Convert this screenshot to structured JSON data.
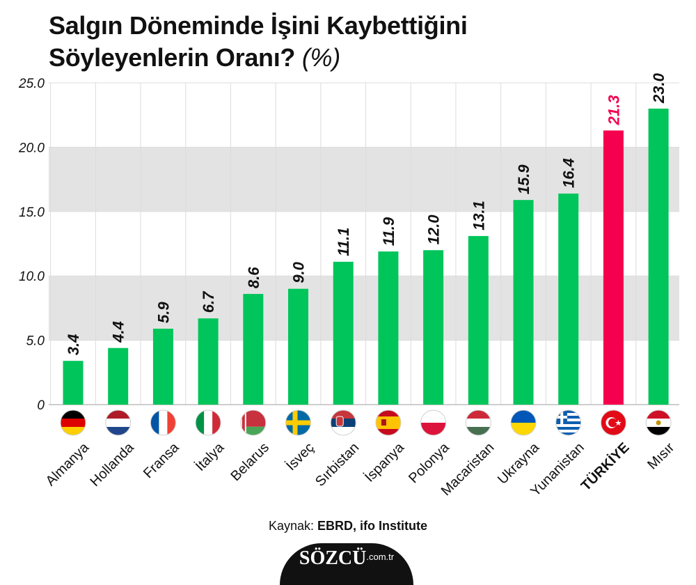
{
  "title": {
    "line1": "Salgın Döneminde İşini Kaybettiğini",
    "line2": "Söyleyenlerin Oranı?",
    "unit": "(%)"
  },
  "source": {
    "prefix": "Kaynak:",
    "name": "EBRD, ifo Institute"
  },
  "logo": {
    "brand": "SÖZCÜ",
    "tld": ".com.tr"
  },
  "colors": {
    "bar": "#00c55a",
    "highlight": "#f5004e",
    "band": "#e3e3e3",
    "grid": "#dcdcdc"
  },
  "chart_data": {
    "type": "bar",
    "categories": [
      "Almanya",
      "Hollanda",
      "Fransa",
      "İtalya",
      "Belarus",
      "İsveç",
      "Sırbistan",
      "İspanya",
      "Polonya",
      "Macaristan",
      "Ukrayna",
      "Yunanistan",
      "TÜRKİYE",
      "Mısır"
    ],
    "values": [
      3.4,
      4.4,
      5.9,
      6.7,
      8.6,
      9.0,
      11.1,
      11.9,
      12.0,
      13.1,
      15.9,
      16.4,
      21.3,
      23.0
    ],
    "value_labels": [
      "3.4",
      "4.4",
      "5.9",
      "6.7",
      "8.6",
      "9.0",
      "11.1",
      "11.9",
      "12.0",
      "13.1",
      "15.9",
      "16.4",
      "21.3",
      "23.0"
    ],
    "highlight_index": 12,
    "flags": [
      "germany-flag",
      "netherlands-flag",
      "france-flag",
      "italy-flag",
      "belarus-flag",
      "sweden-flag",
      "serbia-flag",
      "spain-flag",
      "poland-flag",
      "hungary-flag",
      "ukraine-flag",
      "greece-flag",
      "turkey-flag",
      "egypt-flag"
    ],
    "yticks": [
      "0",
      "5.0",
      "10.0",
      "15.0",
      "20.0",
      "25.0"
    ],
    "ylim": [
      0,
      25
    ],
    "grid": true
  }
}
